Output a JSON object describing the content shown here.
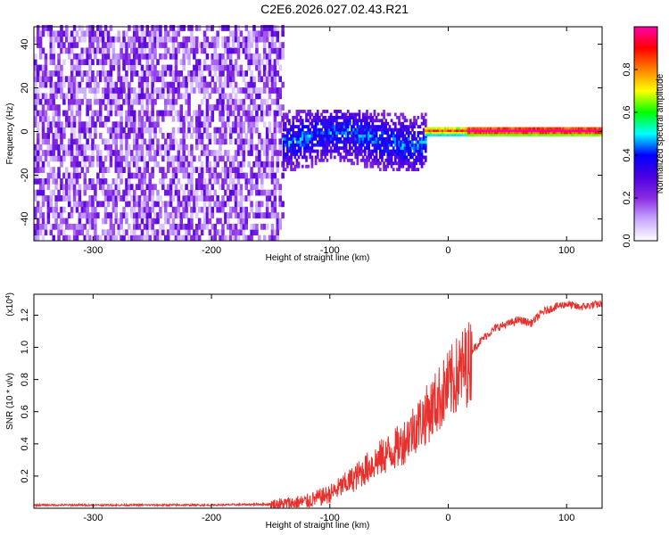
{
  "title": "C2E6.2026.027.02.43.R21",
  "chart_data": [
    {
      "type": "heatmap",
      "xlabel": "Height of straight line (km)",
      "ylabel": "Frequency (Hz)",
      "xlim": [
        -350,
        130
      ],
      "ylim": [
        -50,
        48
      ],
      "x_ticks": [
        -300,
        -200,
        -100,
        0,
        100
      ],
      "y_ticks": [
        -40,
        -20,
        0,
        20,
        40
      ],
      "x_tick_labels": [
        "-300",
        "-200",
        "-100",
        "0",
        "100"
      ],
      "y_tick_labels": [
        "-40",
        "-20",
        "0",
        "20",
        "40"
      ],
      "colorbar": {
        "label": "Normalized spectral amplitude",
        "range": [
          0,
          1
        ],
        "ticks": [
          0.0,
          0.2,
          0.4,
          0.6,
          0.8
        ],
        "tick_labels": [
          "0.0",
          "0.2",
          "0.4",
          "0.6",
          "0.8"
        ],
        "colors": [
          "#ffffff",
          "#c8a8ff",
          "#8a2be2",
          "#4b00e0",
          "#0000ff",
          "#00ffff",
          "#00ff00",
          "#ffff00",
          "#ff8000",
          "#ff0000",
          "#ff00aa"
        ]
      },
      "regions": [
        {
          "description": "broadband noise",
          "x_range": [
            -350,
            -140
          ],
          "freq_range": [
            -50,
            48
          ],
          "amplitude": [
            0.05,
            0.2
          ]
        },
        {
          "description": "transition band",
          "x_range": [
            -140,
            -20
          ],
          "freq_range": [
            -18,
            10
          ],
          "amplitude": [
            0.2,
            0.45
          ]
        },
        {
          "description": "narrow carrier line",
          "x_range": [
            -20,
            130
          ],
          "freq_range": [
            -2,
            2
          ],
          "amplitude": [
            0.4,
            0.95
          ]
        }
      ]
    },
    {
      "type": "line",
      "xlabel": "Height of straight line (km)",
      "ylabel": "SNR (10 * v/v)",
      "y_scale_label": "(x10",
      "y_scale_exponent": "4",
      "y_scale_suffix": ")",
      "xlim": [
        -350,
        130
      ],
      "ylim": [
        0,
        1.33
      ],
      "x_ticks": [
        -300,
        -200,
        -100,
        0,
        100
      ],
      "y_ticks": [
        0.2,
        0.4,
        0.6,
        0.8,
        1.0,
        1.2
      ],
      "x_tick_labels": [
        "-300",
        "-200",
        "-100",
        "0",
        "100"
      ],
      "y_tick_labels": [
        "0.2",
        "0.4",
        "0.6",
        "0.8",
        "1.0",
        "1.2"
      ],
      "color": "#e8302c",
      "series": [
        {
          "name": "SNR",
          "x": [
            -350,
            -300,
            -250,
            -200,
            -150,
            -120,
            -100,
            -80,
            -60,
            -40,
            -30,
            -20,
            -10,
            0,
            10,
            20,
            30,
            40,
            60,
            70,
            80,
            90,
            100,
            110,
            120,
            130
          ],
          "y": [
            0.02,
            0.02,
            0.02,
            0.02,
            0.025,
            0.05,
            0.1,
            0.2,
            0.32,
            0.42,
            0.52,
            0.6,
            0.7,
            0.8,
            0.9,
            0.98,
            1.06,
            1.12,
            1.17,
            1.15,
            1.22,
            1.25,
            1.27,
            1.25,
            1.26,
            1.27
          ]
        }
      ]
    }
  ]
}
